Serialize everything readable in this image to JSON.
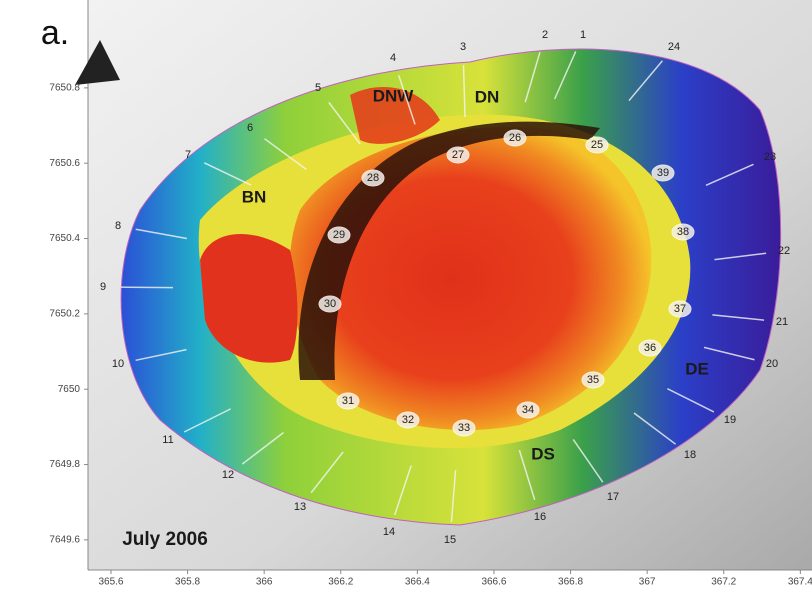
{
  "panel_label": "a.",
  "date_label": "July 2006",
  "axes": {
    "xlim": [
      365.54,
      367.42
    ],
    "xticks": [
      365.6,
      365.8,
      366,
      366.2,
      366.4,
      366.6,
      366.8,
      367,
      367.2,
      367.4
    ],
    "ylim": [
      7649.52,
      7651.02
    ],
    "yticks": [
      7649.6,
      7649.8,
      7650,
      7650.2,
      7650.4,
      7650.6,
      7650.8
    ]
  },
  "regions": [
    "BN",
    "DNW",
    "DN",
    "DE",
    "DS"
  ],
  "stations": [
    "1",
    "2",
    "3",
    "4",
    "5",
    "6",
    "7",
    "8",
    "9",
    "10",
    "11",
    "12",
    "13",
    "14",
    "15",
    "16",
    "17",
    "18",
    "19",
    "20",
    "21",
    "22",
    "23",
    "24",
    "25",
    "26",
    "27",
    "28",
    "29",
    "30",
    "31",
    "32",
    "33",
    "34",
    "35",
    "36",
    "37",
    "38",
    "39"
  ]
}
